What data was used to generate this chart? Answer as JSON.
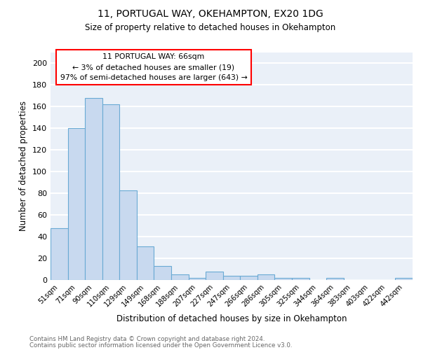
{
  "title1": "11, PORTUGAL WAY, OKEHAMPTON, EX20 1DG",
  "title2": "Size of property relative to detached houses in Okehampton",
  "xlabel": "Distribution of detached houses by size in Okehampton",
  "ylabel": "Number of detached properties",
  "categories": [
    "51sqm",
    "71sqm",
    "90sqm",
    "110sqm",
    "129sqm",
    "149sqm",
    "168sqm",
    "188sqm",
    "207sqm",
    "227sqm",
    "247sqm",
    "266sqm",
    "286sqm",
    "305sqm",
    "325sqm",
    "344sqm",
    "364sqm",
    "383sqm",
    "403sqm",
    "422sqm",
    "442sqm"
  ],
  "values": [
    48,
    140,
    168,
    162,
    83,
    31,
    13,
    5,
    2,
    8,
    4,
    4,
    5,
    2,
    2,
    0,
    2,
    0,
    0,
    0,
    2
  ],
  "bar_color": "#c8d9ef",
  "bar_edge_color": "#6aaad4",
  "annotation_line1": "11 PORTUGAL WAY: 66sqm",
  "annotation_line2": "← 3% of detached houses are smaller (19)",
  "annotation_line3": "97% of semi-detached houses are larger (643) →",
  "annotation_box_color": "white",
  "annotation_box_edge_color": "red",
  "ylim": [
    0,
    210
  ],
  "yticks": [
    0,
    20,
    40,
    60,
    80,
    100,
    120,
    140,
    160,
    180,
    200
  ],
  "bg_color": "#eaf0f8",
  "grid_color": "white",
  "footer1": "Contains HM Land Registry data © Crown copyright and database right 2024.",
  "footer2": "Contains public sector information licensed under the Open Government Licence v3.0."
}
